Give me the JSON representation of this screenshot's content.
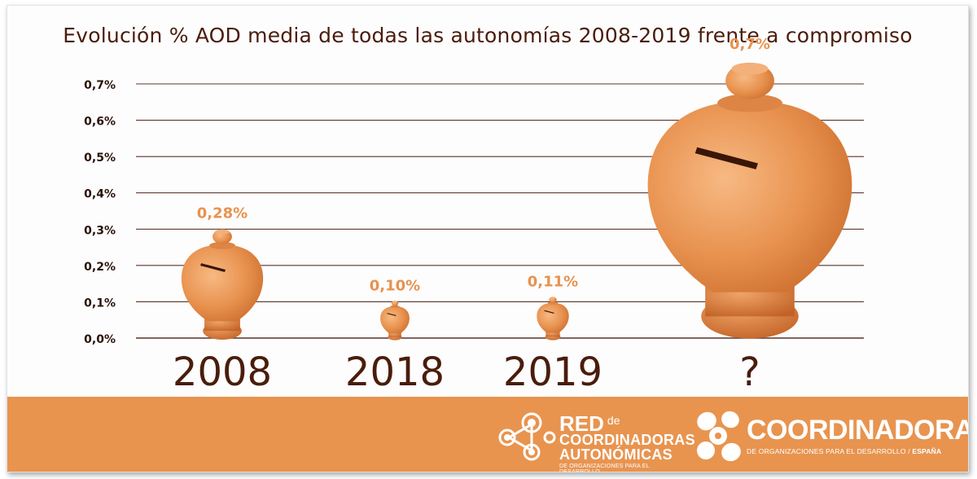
{
  "chart_data": {
    "type": "bar",
    "title": "Evolución % AOD media de todas las autonomías 2008-2019 frente a compromiso",
    "categories": [
      "2008",
      "2018",
      "2019",
      "?"
    ],
    "values": [
      0.28,
      0.1,
      0.11,
      0.7
    ],
    "value_labels": [
      "0,28%",
      "0,10%",
      "0,11%",
      "0,7%"
    ],
    "yticks": [
      "0,0%",
      "0,1%",
      "0,2%",
      "0,3%",
      "0,4%",
      "0,5%",
      "0,6%",
      "0,7%"
    ],
    "ylim": [
      0,
      0.7
    ],
    "grid": true,
    "mark": "piggy-bank-jar-icon",
    "colors": {
      "jar": "#e8924f",
      "label": "#e8924f",
      "text": "#4a1c0c",
      "footer": "#e8944f"
    }
  },
  "footer": {
    "red_logo": {
      "word": "RED",
      "de": "de",
      "line1": "COORDINADORAS",
      "line2": "AUTONÓMICAS",
      "small": "DE ORGANIZACIONES PARA EL DESARROLLO"
    },
    "coordinadora_logo": {
      "word": "COORDINADORA",
      "small": "DE ORGANIZACIONES PARA EL DESARROLLO / ",
      "small_bold": "ESPAÑA"
    }
  }
}
